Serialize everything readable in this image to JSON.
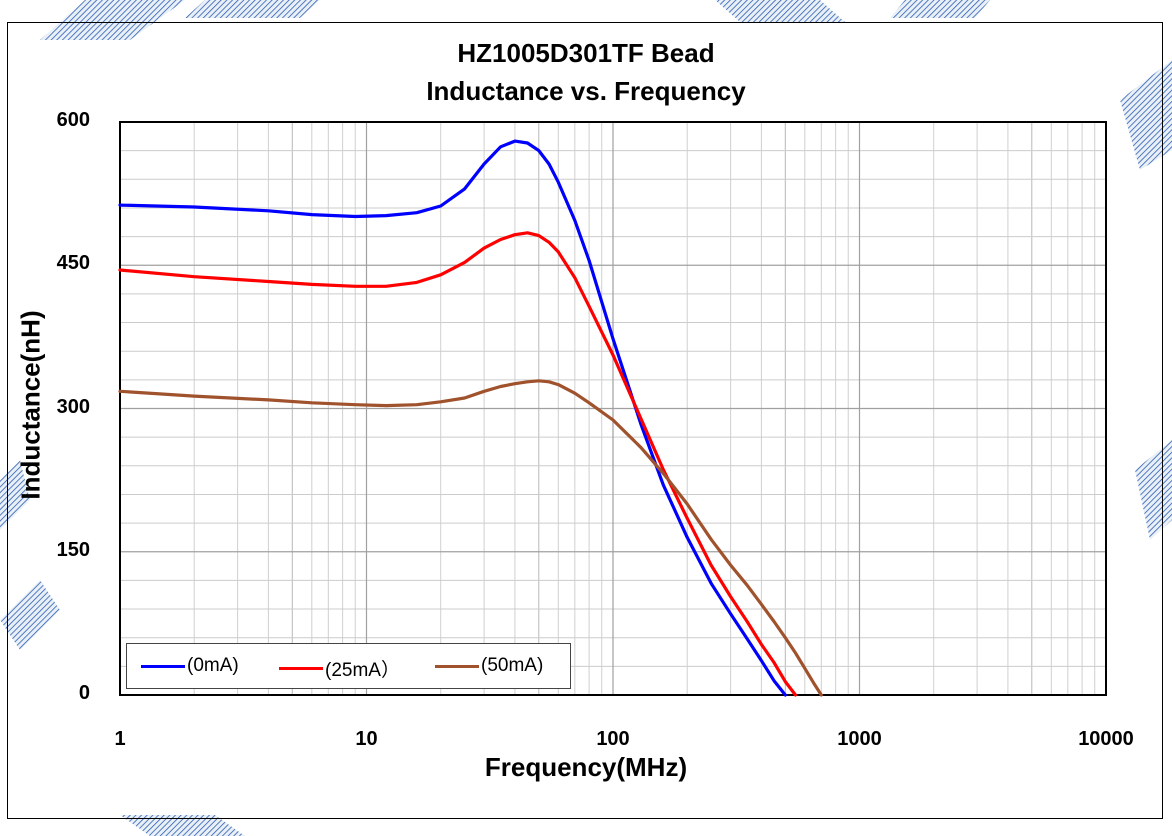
{
  "chart_data": {
    "type": "line",
    "title": "HZ1005D301TF Bead",
    "subtitle": "Inductance vs. Frequency",
    "xlabel": "Frequency(MHz)",
    "ylabel": "Inductance(nH)",
    "xscale": "log",
    "xlim": [
      1,
      10000
    ],
    "ylim": [
      0,
      600
    ],
    "xticks": [
      "1",
      "10",
      "100",
      "1000",
      "10000"
    ],
    "yticks": [
      "0",
      "150",
      "300",
      "450",
      "600"
    ],
    "grid": true,
    "legend_position": "bottom-left",
    "series": [
      {
        "name": "(0mA)",
        "color": "#0000ff",
        "x": [
          1,
          2,
          4,
          6,
          9,
          12,
          16,
          20,
          25,
          30,
          35,
          40,
          45,
          50,
          55,
          60,
          70,
          80,
          100,
          130,
          160,
          200,
          250,
          300,
          350,
          400,
          450,
          500
        ],
        "y": [
          513,
          511,
          507,
          503,
          501,
          502,
          505,
          512,
          530,
          556,
          574,
          580,
          578,
          570,
          556,
          537,
          497,
          455,
          373,
          283,
          220,
          165,
          117,
          85,
          59,
          36,
          15,
          0
        ]
      },
      {
        "name": "(25mA）",
        "color": "#ff0000",
        "x": [
          1,
          2,
          4,
          6,
          9,
          12,
          16,
          20,
          25,
          30,
          35,
          40,
          45,
          50,
          55,
          60,
          70,
          80,
          100,
          130,
          160,
          200,
          250,
          300,
          350,
          400,
          450,
          500,
          550
        ],
        "y": [
          445,
          438,
          433,
          430,
          428,
          428,
          432,
          440,
          453,
          468,
          477,
          482,
          484,
          481,
          474,
          464,
          437,
          407,
          356,
          289,
          236,
          185,
          136,
          103,
          77,
          53,
          34,
          14,
          0
        ]
      },
      {
        "name": "(50mA)",
        "color": "#a0522d",
        "x": [
          1,
          2,
          4,
          6,
          9,
          12,
          16,
          20,
          25,
          30,
          35,
          40,
          45,
          50,
          55,
          60,
          70,
          80,
          100,
          130,
          160,
          200,
          250,
          300,
          350,
          400,
          450,
          500,
          550,
          600,
          650,
          700
        ],
        "y": [
          318,
          313,
          309,
          306,
          304,
          303,
          304,
          307,
          311,
          318,
          323,
          326,
          328,
          329,
          328,
          325,
          316,
          306,
          288,
          259,
          232,
          200,
          163,
          136,
          115,
          95,
          77,
          60,
          44,
          28,
          13,
          0
        ]
      }
    ]
  }
}
